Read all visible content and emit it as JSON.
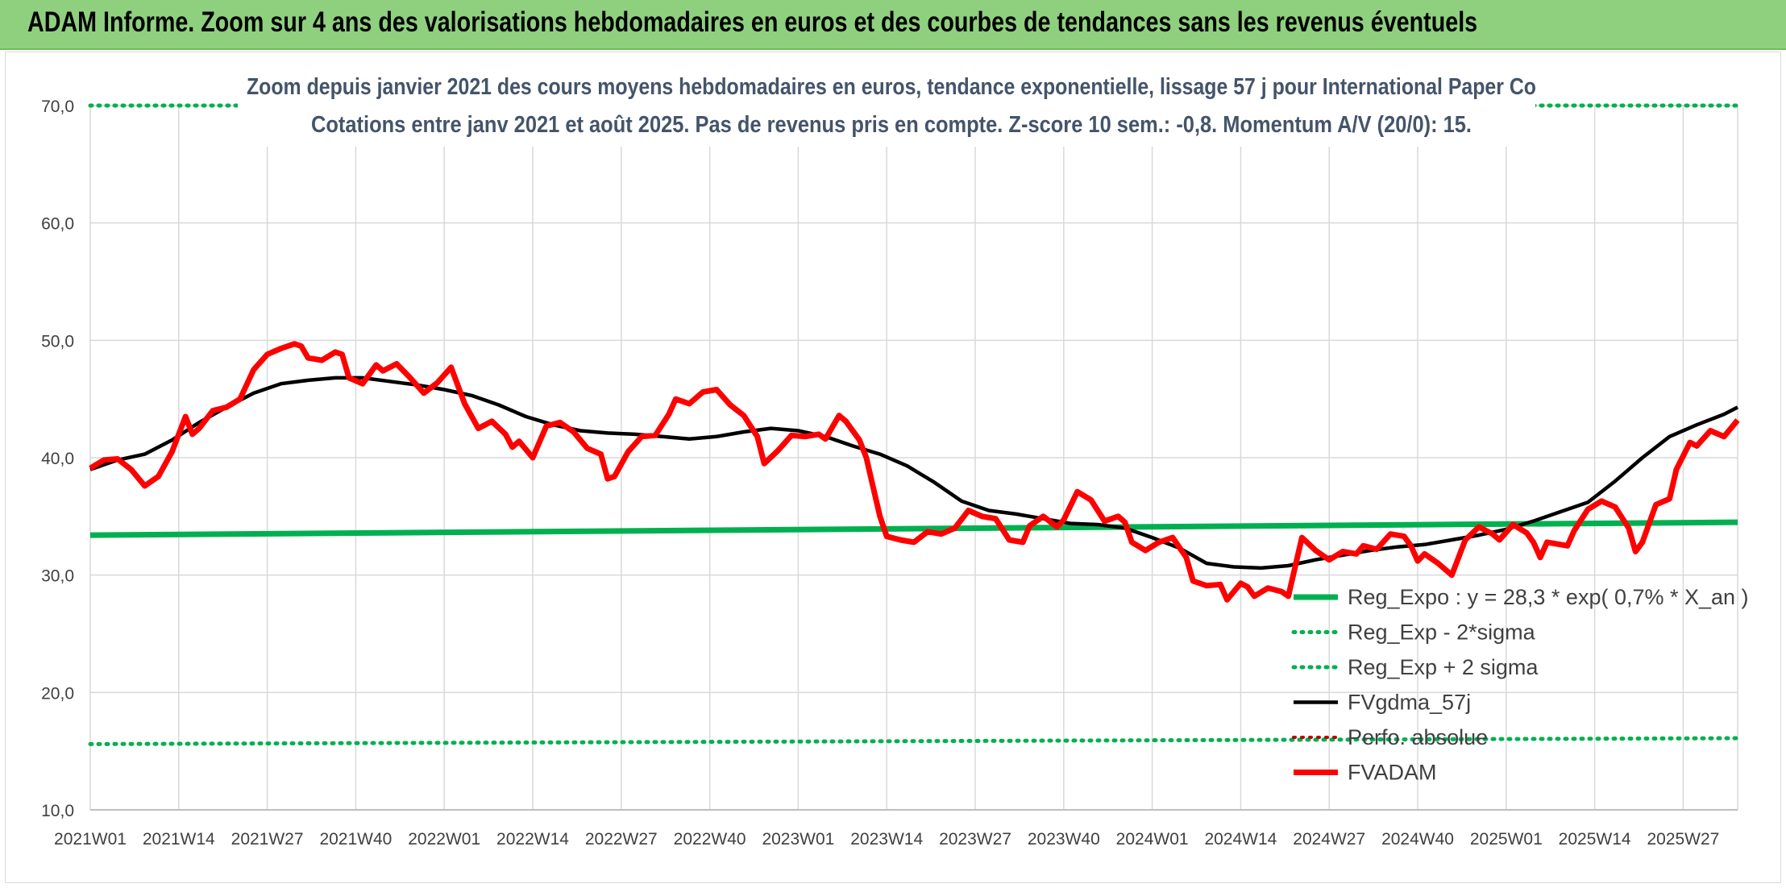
{
  "header": {
    "banner_title": "ADAM Informe. Zoom sur 4 ans des valorisations hebdomadaires en euros et des courbes de tendances sans les revenus éventuels"
  },
  "colors": {
    "banner_bg": "#8fd07f",
    "reg_expo": "#00b050",
    "fvgdma": "#000000",
    "perfo": "#c00000",
    "fvadam": "#ff0000"
  },
  "chart_data": {
    "type": "line",
    "title": "Zoom depuis janvier 2021 des cours moyens hebdomadaires en euros, tendance exponentielle, lissage 57 j pour International Paper Co",
    "subtitle": "Cotations entre janv 2021 et août 2025. Pas de revenus pris en compte. Z-score 10 sem.: -0,8. Momentum A/V (20/0): 15.",
    "ylim": [
      10,
      70
    ],
    "yticks": [
      "10,0",
      "20,0",
      "30,0",
      "40,0",
      "50,0",
      "60,0",
      "70,0"
    ],
    "xticks": [
      "2021W01",
      "2021W14",
      "2021W27",
      "2021W40",
      "2022W01",
      "2022W14",
      "2022W27",
      "2022W40",
      "2023W01",
      "2023W14",
      "2023W27",
      "2023W40",
      "2024W01",
      "2024W14",
      "2024W27",
      "2024W40",
      "2025W01",
      "2025W14",
      "2025W27"
    ],
    "grid": "vertical and horizontal",
    "legend_position": "bottom-right",
    "week_count": 243,
    "series": [
      {
        "name": "Reg_Expo : y = 28,3 * exp( 0,7% *  X_an )",
        "style": "solid-green",
        "points": [
          [
            0,
            33.4
          ],
          [
            242,
            34.5
          ]
        ]
      },
      {
        "name": "Reg_Exp - 2*sigma",
        "style": "dotted-green",
        "points": [
          [
            0,
            15.6
          ],
          [
            242,
            16.1
          ]
        ]
      },
      {
        "name": "Reg_Exp + 2 sigma",
        "style": "dotted-green",
        "points": [
          [
            0,
            70.0
          ],
          [
            242,
            70.0
          ]
        ]
      },
      {
        "name": "FVgdma_57j",
        "style": "solid-black",
        "points": [
          [
            0,
            39.0
          ],
          [
            4,
            39.8
          ],
          [
            8,
            40.3
          ],
          [
            12,
            41.5
          ],
          [
            16,
            43.0
          ],
          [
            20,
            44.3
          ],
          [
            24,
            45.5
          ],
          [
            28,
            46.3
          ],
          [
            32,
            46.6
          ],
          [
            36,
            46.8
          ],
          [
            40,
            46.8
          ],
          [
            44,
            46.5
          ],
          [
            48,
            46.2
          ],
          [
            52,
            45.8
          ],
          [
            56,
            45.3
          ],
          [
            60,
            44.5
          ],
          [
            64,
            43.5
          ],
          [
            68,
            42.8
          ],
          [
            72,
            42.3
          ],
          [
            76,
            42.1
          ],
          [
            80,
            42.0
          ],
          [
            84,
            41.8
          ],
          [
            88,
            41.6
          ],
          [
            92,
            41.8
          ],
          [
            96,
            42.2
          ],
          [
            100,
            42.5
          ],
          [
            104,
            42.3
          ],
          [
            108,
            41.8
          ],
          [
            112,
            41.0
          ],
          [
            116,
            40.3
          ],
          [
            120,
            39.3
          ],
          [
            124,
            37.9
          ],
          [
            128,
            36.3
          ],
          [
            132,
            35.5
          ],
          [
            136,
            35.2
          ],
          [
            140,
            34.8
          ],
          [
            144,
            34.4
          ],
          [
            148,
            34.3
          ],
          [
            152,
            34.0
          ],
          [
            156,
            33.2
          ],
          [
            160,
            32.3
          ],
          [
            164,
            31.0
          ],
          [
            168,
            30.7
          ],
          [
            172,
            30.6
          ],
          [
            176,
            30.8
          ],
          [
            180,
            31.3
          ],
          [
            184,
            31.7
          ],
          [
            188,
            32.1
          ],
          [
            192,
            32.4
          ],
          [
            196,
            32.6
          ],
          [
            200,
            33.0
          ],
          [
            204,
            33.4
          ],
          [
            208,
            33.9
          ],
          [
            212,
            34.6
          ],
          [
            216,
            35.4
          ],
          [
            220,
            36.2
          ],
          [
            224,
            38.0
          ],
          [
            228,
            40.0
          ],
          [
            232,
            41.8
          ],
          [
            236,
            42.8
          ],
          [
            240,
            43.7
          ],
          [
            242,
            44.3
          ],
          [
            226,
            39.0
          ]
        ]
      },
      {
        "name": "Perfo. absolue",
        "style": "dotted-red",
        "points": []
      },
      {
        "name": "FVADAM",
        "style": "solid-red",
        "points": [
          [
            0,
            39.1
          ],
          [
            2,
            39.8
          ],
          [
            4,
            39.9
          ],
          [
            6,
            39.0
          ],
          [
            8,
            37.6
          ],
          [
            10,
            38.4
          ],
          [
            12,
            40.5
          ],
          [
            14,
            43.5
          ],
          [
            15,
            42.0
          ],
          [
            16,
            42.5
          ],
          [
            18,
            44.0
          ],
          [
            20,
            44.3
          ],
          [
            22,
            45.0
          ],
          [
            24,
            47.5
          ],
          [
            26,
            48.8
          ],
          [
            28,
            49.3
          ],
          [
            30,
            49.7
          ],
          [
            31,
            49.5
          ],
          [
            32,
            48.5
          ],
          [
            34,
            48.3
          ],
          [
            36,
            49.0
          ],
          [
            37,
            48.8
          ],
          [
            38,
            46.8
          ],
          [
            40,
            46.3
          ],
          [
            42,
            47.9
          ],
          [
            43,
            47.4
          ],
          [
            45,
            48.0
          ],
          [
            47,
            46.8
          ],
          [
            49,
            45.5
          ],
          [
            51,
            46.4
          ],
          [
            53,
            47.7
          ],
          [
            55,
            44.6
          ],
          [
            57,
            42.5
          ],
          [
            59,
            43.1
          ],
          [
            61,
            42.0
          ],
          [
            62,
            40.9
          ],
          [
            63,
            41.4
          ],
          [
            65,
            40.0
          ],
          [
            67,
            42.7
          ],
          [
            69,
            43.0
          ],
          [
            71,
            42.2
          ],
          [
            73,
            40.8
          ],
          [
            75,
            40.3
          ],
          [
            76,
            38.2
          ],
          [
            77,
            38.4
          ],
          [
            79,
            40.5
          ],
          [
            81,
            41.8
          ],
          [
            83,
            41.9
          ],
          [
            85,
            43.7
          ],
          [
            86,
            45.0
          ],
          [
            88,
            44.6
          ],
          [
            90,
            45.6
          ],
          [
            92,
            45.8
          ],
          [
            94,
            44.5
          ],
          [
            96,
            43.6
          ],
          [
            98,
            41.8
          ],
          [
            99,
            39.5
          ],
          [
            101,
            40.6
          ],
          [
            103,
            41.9
          ],
          [
            105,
            41.8
          ],
          [
            107,
            42.0
          ],
          [
            108,
            41.6
          ],
          [
            110,
            43.6
          ],
          [
            111,
            43.1
          ],
          [
            113,
            41.5
          ],
          [
            114,
            40.0
          ],
          [
            115,
            37.5
          ],
          [
            116,
            35.0
          ],
          [
            117,
            33.3
          ],
          [
            119,
            33.0
          ],
          [
            121,
            32.8
          ],
          [
            123,
            33.7
          ],
          [
            125,
            33.5
          ],
          [
            127,
            34.0
          ],
          [
            129,
            35.5
          ],
          [
            131,
            35.0
          ],
          [
            133,
            34.8
          ],
          [
            135,
            33.0
          ],
          [
            137,
            32.8
          ],
          [
            138,
            34.2
          ],
          [
            140,
            35.0
          ],
          [
            142,
            34.1
          ],
          [
            143,
            34.7
          ],
          [
            145,
            37.1
          ],
          [
            147,
            36.4
          ],
          [
            149,
            34.6
          ],
          [
            151,
            35.0
          ],
          [
            152,
            34.5
          ],
          [
            153,
            32.8
          ],
          [
            155,
            32.1
          ],
          [
            157,
            32.8
          ],
          [
            159,
            33.2
          ],
          [
            161,
            31.5
          ],
          [
            162,
            29.5
          ],
          [
            164,
            29.1
          ],
          [
            166,
            29.2
          ],
          [
            167,
            27.9
          ],
          [
            169,
            29.3
          ],
          [
            170,
            29.0
          ],
          [
            171,
            28.2
          ],
          [
            173,
            28.9
          ],
          [
            175,
            28.6
          ],
          [
            176,
            28.2
          ],
          [
            178,
            33.2
          ],
          [
            180,
            32.1
          ],
          [
            182,
            31.3
          ],
          [
            184,
            32.0
          ],
          [
            186,
            31.8
          ],
          [
            187,
            32.5
          ],
          [
            189,
            32.2
          ],
          [
            191,
            33.5
          ],
          [
            193,
            33.3
          ],
          [
            194,
            32.5
          ],
          [
            195,
            31.2
          ],
          [
            196,
            31.8
          ],
          [
            198,
            31.0
          ],
          [
            200,
            30.0
          ],
          [
            202,
            33.0
          ],
          [
            204,
            34.1
          ],
          [
            206,
            33.5
          ],
          [
            207,
            33.0
          ],
          [
            209,
            34.3
          ],
          [
            211,
            33.6
          ],
          [
            212,
            32.8
          ],
          [
            213,
            31.5
          ],
          [
            214,
            32.8
          ],
          [
            216,
            32.6
          ],
          [
            217,
            32.5
          ],
          [
            218,
            33.8
          ],
          [
            220,
            35.6
          ],
          [
            222,
            36.3
          ],
          [
            224,
            35.8
          ],
          [
            226,
            34.0
          ],
          [
            227,
            32.0
          ],
          [
            228,
            32.8
          ],
          [
            230,
            36.0
          ],
          [
            232,
            36.5
          ],
          [
            233,
            39.0
          ],
          [
            235,
            41.3
          ],
          [
            236,
            41.0
          ],
          [
            238,
            42.3
          ],
          [
            240,
            41.8
          ],
          [
            242,
            43.2
          ]
        ]
      }
    ]
  },
  "legend": [
    {
      "label": "Reg_Expo : y = 28,3 * exp( 0,7% *  X_an )"
    },
    {
      "label": "Reg_Exp - 2*sigma"
    },
    {
      "label": "Reg_Exp + 2 sigma"
    },
    {
      "label": "FVgdma_57j"
    },
    {
      "label": "Perfo. absolue"
    },
    {
      "label": "FVADAM"
    }
  ]
}
